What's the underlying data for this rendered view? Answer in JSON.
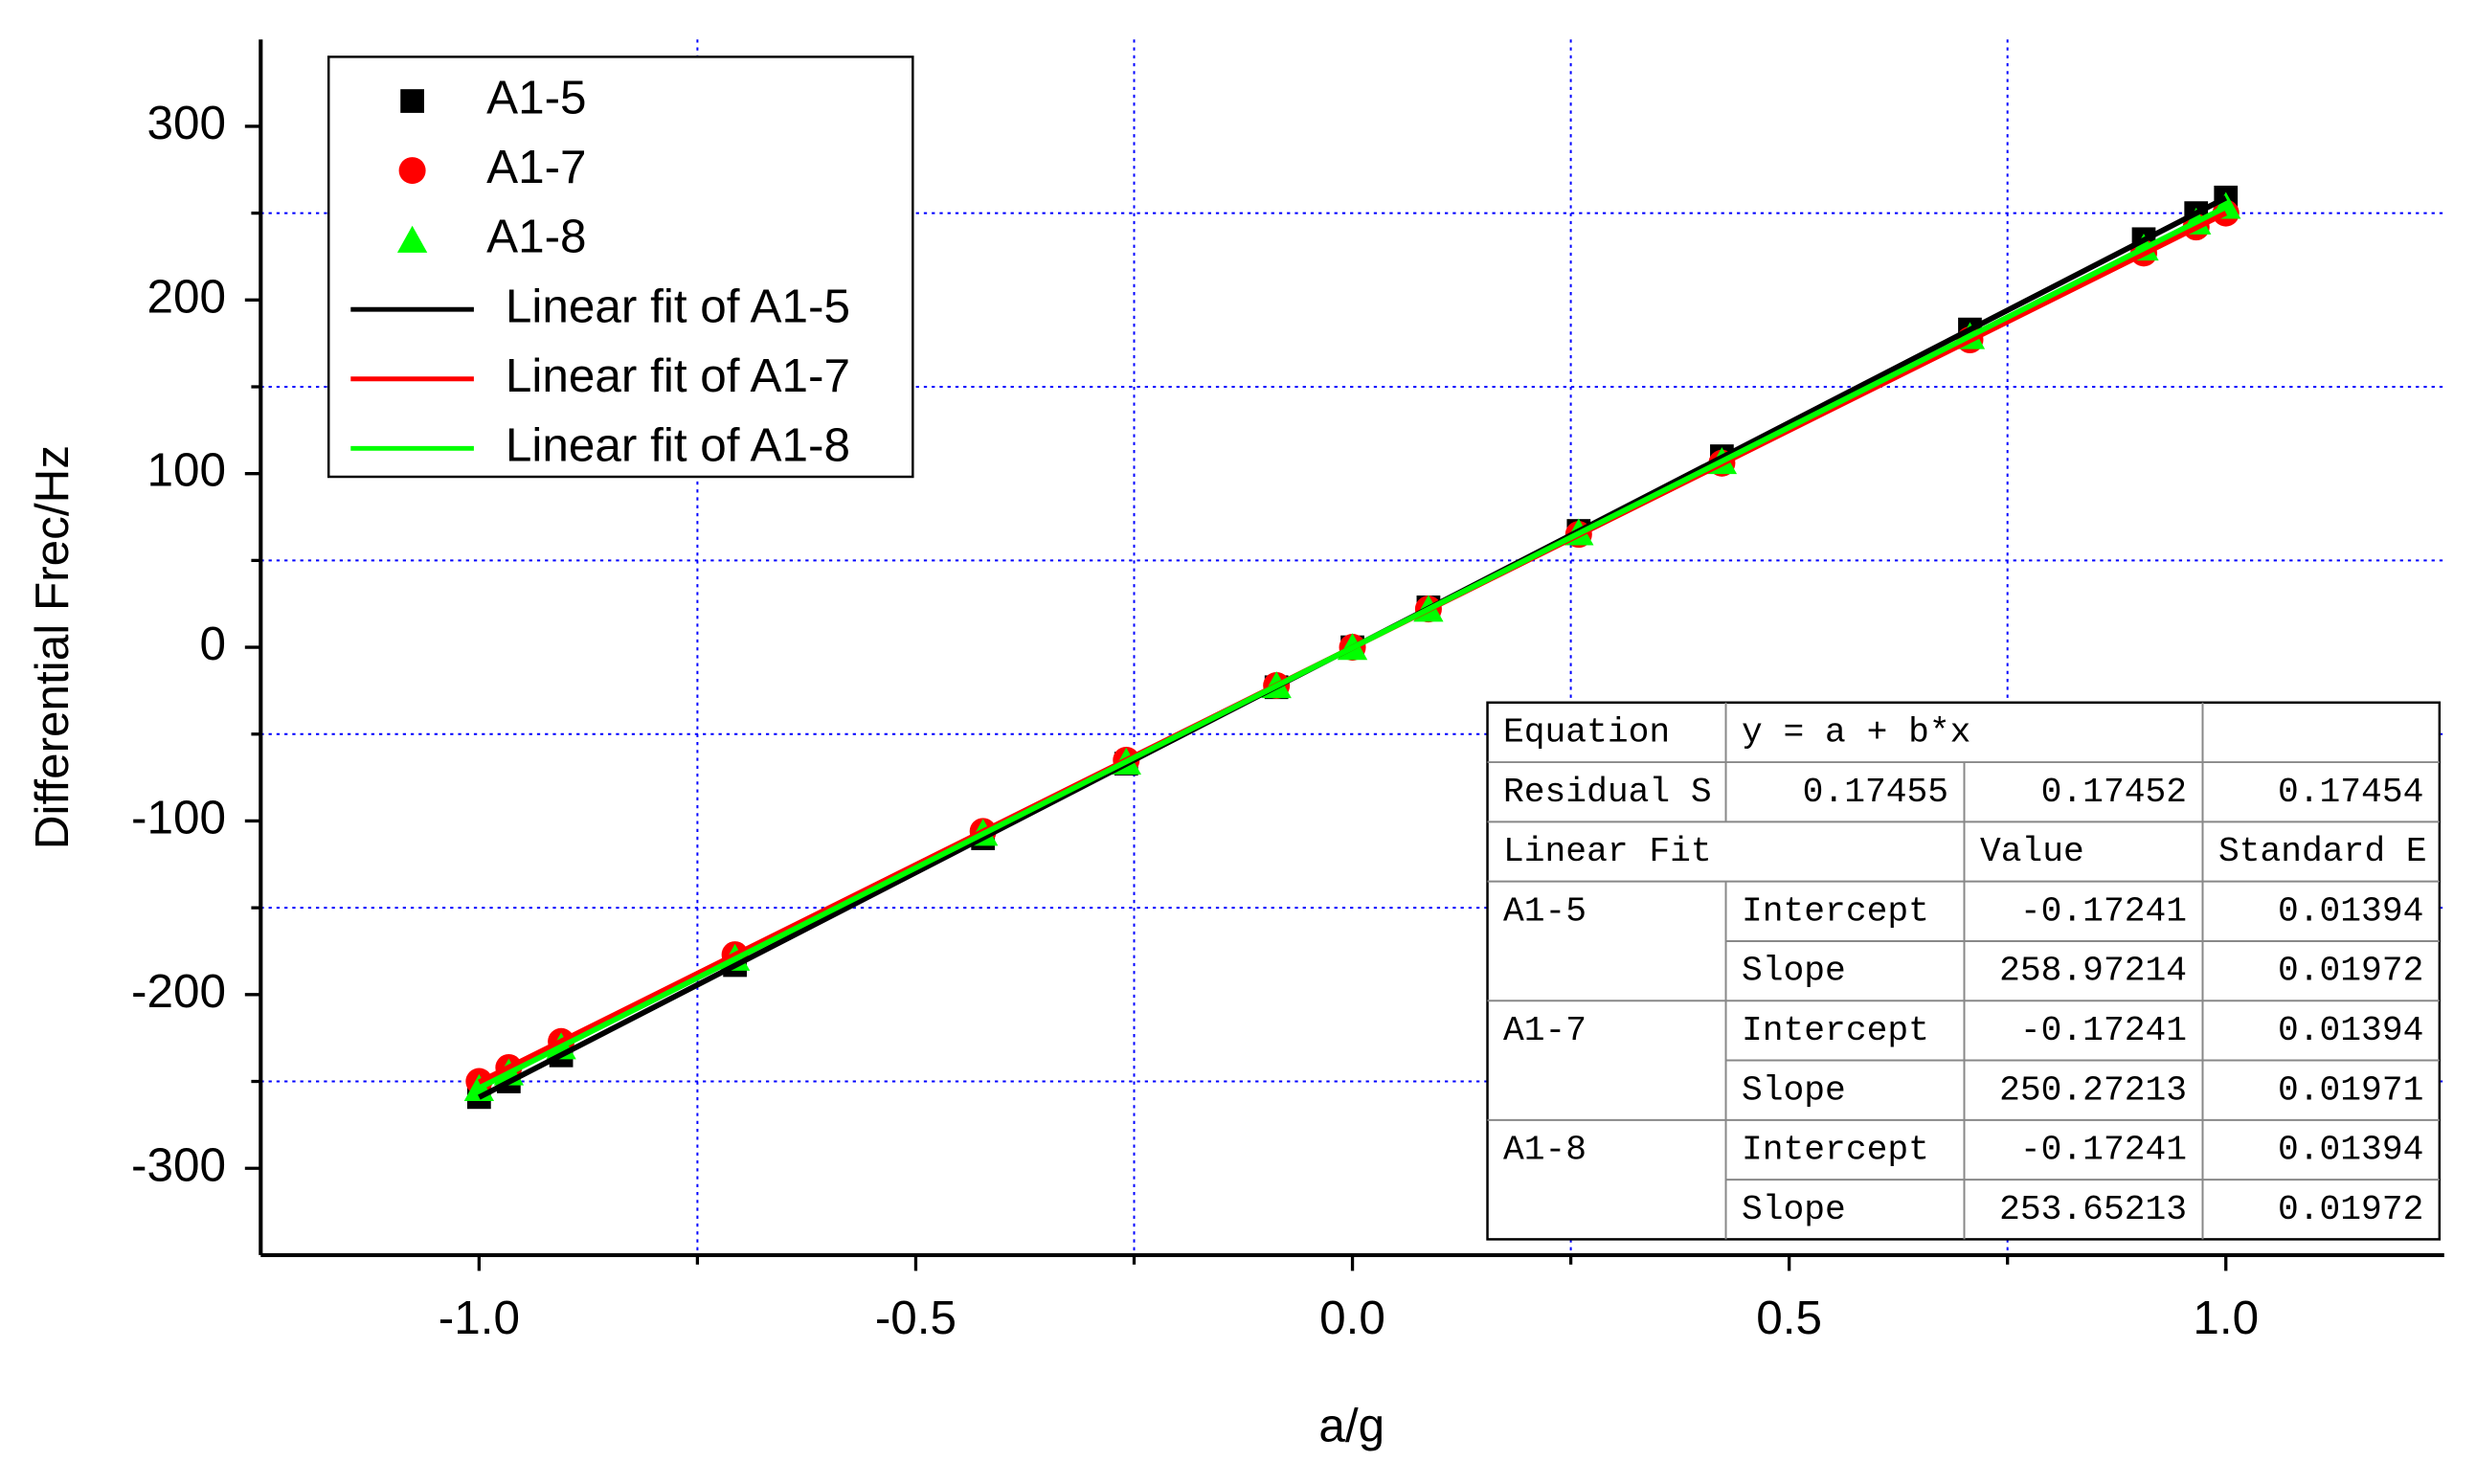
{
  "chart_data": {
    "type": "scatter",
    "x_label": "a/g",
    "y_label": "Differential Frec/Hz",
    "xlim": [
      -1.25,
      1.25
    ],
    "ylim": [
      -350,
      350
    ],
    "xticks": [
      {
        "value": -1,
        "label": "-1.0"
      },
      {
        "value": -0.5,
        "label": "-0.5"
      },
      {
        "value": 0,
        "label": "0.0"
      },
      {
        "value": 0.5,
        "label": "0.5"
      },
      {
        "value": 1,
        "label": "1.0"
      }
    ],
    "yticks": [
      -300,
      -200,
      -100,
      0,
      100,
      200,
      300
    ],
    "xgrid": [
      -0.75,
      -0.25,
      0.25,
      0.75
    ],
    "ygrid": [
      -250,
      -150,
      -50,
      50,
      150,
      250
    ],
    "grid_color": "#0000ff",
    "legend": "upper left",
    "x": [
      -1,
      -0.966,
      -0.906,
      -0.707,
      -0.423,
      -0.259,
      -0.087,
      0,
      0.087,
      0.259,
      0.423,
      0.707,
      0.906,
      0.966,
      1
    ],
    "series": [
      {
        "name": "A1-5",
        "color": "#000000",
        "marker": "square",
        "values": [
          -259,
          -250,
          -235,
          -183,
          -110,
          -67,
          -23,
          0,
          23,
          67,
          110,
          183,
          235,
          250,
          259
        ]
      },
      {
        "name": "A1-7",
        "color": "#ff0000",
        "marker": "circle",
        "values": [
          -250,
          -242,
          -227,
          -177,
          -106,
          -65,
          -22,
          0,
          22,
          65,
          106,
          177,
          227,
          242,
          250
        ]
      },
      {
        "name": "A1-8",
        "color": "#00ff00",
        "marker": "triangle",
        "values": [
          -254,
          -245,
          -230,
          -179,
          -107,
          -66,
          -22,
          0,
          22,
          66,
          107,
          179,
          230,
          245,
          254
        ]
      }
    ],
    "fits": [
      {
        "name": "Linear fit of A1-5",
        "color": "#000000",
        "intercept": -0.17241,
        "slope": 258.97214,
        "intercept_error": 0.01394,
        "slope_error": 0.01972,
        "residual": 0.17455
      },
      {
        "name": "Linear fit of A1-7",
        "color": "#ff0000",
        "intercept": -0.17241,
        "slope": 250.27213,
        "intercept_error": 0.01394,
        "slope_error": 0.01971,
        "residual": 0.17452
      },
      {
        "name": "Linear fit of A1-8",
        "color": "#00ff00",
        "intercept": -0.17241,
        "slope": 253.65213,
        "intercept_error": 0.01394,
        "slope_error": 0.01972,
        "residual": 0.17454
      }
    ],
    "fit_table": {
      "equation_header": "Equation",
      "equation": "y = a + b*x",
      "residual_header": "Residual S",
      "linear_fit_header": "Linear Fit",
      "value_header": "Value",
      "error_header": "Standard E",
      "param_labels": [
        "Intercept",
        "Slope"
      ]
    }
  }
}
